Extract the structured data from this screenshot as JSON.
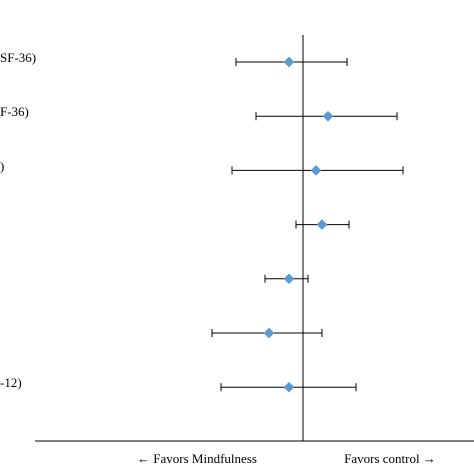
{
  "chart_data": {
    "type": "forest",
    "categories": [
      "SF-36)",
      "F-36)",
      ")",
      null,
      null,
      null,
      "-12)"
    ],
    "values": [
      -0.14,
      0.25,
      0.13,
      0.19,
      -0.14,
      -0.34,
      -0.14
    ],
    "lower": [
      -0.67,
      -0.47,
      -0.71,
      -0.07,
      -0.38,
      -0.91,
      -0.82
    ],
    "upper": [
      0.44,
      0.94,
      1.0,
      0.46,
      0.05,
      0.19,
      0.53
    ],
    "xlim": [
      -2.68,
      1.71
    ],
    "reference": 0,
    "left_label": "← Favors Mindfulness",
    "right_label": "Favors control →",
    "color": "#5b9bd5"
  }
}
